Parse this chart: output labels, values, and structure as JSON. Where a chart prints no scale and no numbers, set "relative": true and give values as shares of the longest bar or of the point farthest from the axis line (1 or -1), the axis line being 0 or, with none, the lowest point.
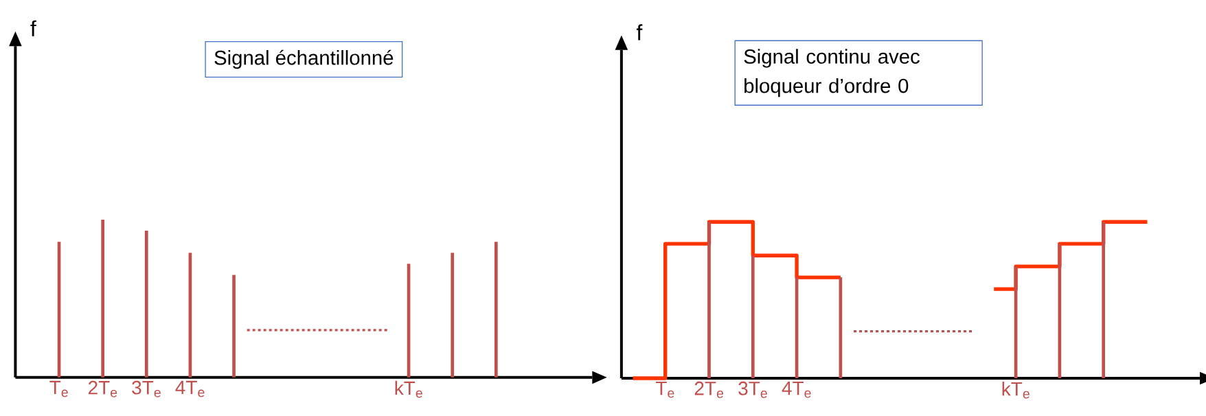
{
  "chart_data": [
    {
      "type": "bar",
      "title": "Signal échantillonné",
      "ylabel": "f",
      "relative": true,
      "color": "#c0504d",
      "x": [
        1,
        2,
        3,
        4,
        5,
        9,
        10,
        11
      ],
      "values": [
        0.86,
        1,
        0.93,
        0.79,
        0.65,
        0.72,
        0.79,
        0.86
      ],
      "xlim": [
        0,
        13.2
      ],
      "xticks": [
        {
          "value": 1,
          "label": "T$_{e}$"
        },
        {
          "value": 2,
          "label": "2T$_{e}$"
        },
        {
          "value": 3,
          "label": "3T$_{e}$"
        },
        {
          "value": 4,
          "label": "4T$_{e}$"
        },
        {
          "value": 9,
          "label": "kT$_{e}$"
        }
      ]
    },
    {
      "type": "step",
      "title": "Signal continu avec bloqueur d’ordre 0",
      "ylabel": "f",
      "relative": true,
      "xlim": [
        0,
        13.2
      ],
      "xticks": [
        {
          "value": 1,
          "label": "T$_{e}$"
        },
        {
          "value": 2,
          "label": "2T$_{e}$"
        },
        {
          "value": 3,
          "label": "3T$_{e}$"
        },
        {
          "value": 4,
          "label": "4T$_{e}$"
        },
        {
          "value": 9,
          "label": "kT$_{e}$"
        }
      ],
      "series": [
        {
          "type": "step",
          "color": "#ff3300",
          "x": [
            0.26,
            1,
            2,
            3,
            4,
            5,
            7,
            8.5,
            9,
            10,
            11,
            12
          ],
          "values": [
            0,
            0.86,
            1,
            0.785,
            0.645,
            0.645,
            null,
            0.57,
            0.715,
            0.86,
            1,
            1
          ]
        },
        {
          "type": "bar",
          "color": "#c0504d",
          "x": [
            2,
            3,
            4,
            5,
            9,
            10,
            11
          ],
          "values": [
            1,
            0.785,
            0.645,
            0.645,
            0.715,
            0.86,
            1
          ]
        }
      ]
    }
  ]
}
